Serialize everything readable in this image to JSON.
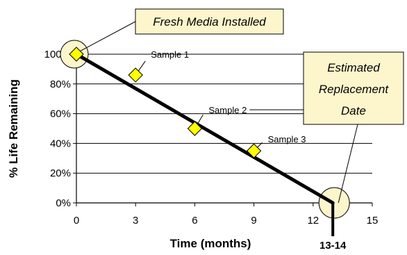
{
  "chart_data": {
    "type": "line",
    "title": "",
    "xlabel": "Time (months)",
    "ylabel": "% Life Remaining",
    "xlim": [
      0,
      15
    ],
    "ylim": [
      0,
      100
    ],
    "x_ticks": [
      0,
      3,
      6,
      9,
      12,
      15
    ],
    "y_ticks": [
      0,
      20,
      40,
      60,
      80,
      100
    ],
    "x_tick_labels": [
      "0",
      "3",
      "6",
      "9",
      "12",
      "15"
    ],
    "y_tick_labels": [
      "0%",
      "20%",
      "40%",
      "60%",
      "80%",
      "100%"
    ],
    "grid": "horizontal",
    "trend_line": {
      "x": [
        0,
        13
      ],
      "y": [
        100,
        0
      ]
    },
    "samples": [
      {
        "label": "Sample 1",
        "x": 3,
        "y": 86
      },
      {
        "label": "Sample 2",
        "x": 6,
        "y": 50
      },
      {
        "label": "Sample 3",
        "x": 9,
        "y": 35
      }
    ],
    "start_point": {
      "x": 0,
      "y": 100
    },
    "end_point": {
      "x": 13,
      "y": 0
    },
    "annotations": {
      "start_callout": "Fresh Media Installed",
      "end_callout_lines": [
        "Estimated",
        "Replacement",
        "Date"
      ],
      "end_marker_label": "13-14"
    },
    "colors": {
      "marker_fill": "#ffff00",
      "callout_fill": "#fdf5cc",
      "circle_fill": "#fdf5cc",
      "trend_line": "#000000"
    }
  }
}
